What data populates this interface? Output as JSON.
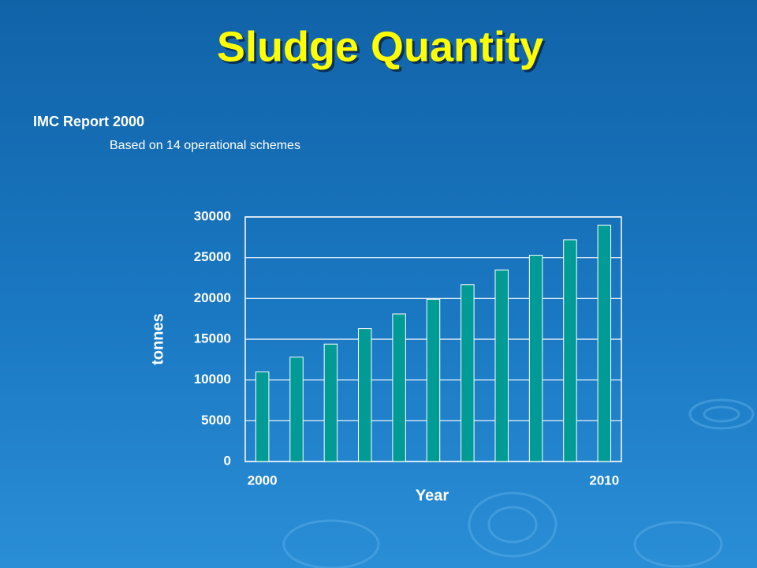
{
  "slide": {
    "title": "Sludge Quantity",
    "heading": "IMC Report 2000",
    "subheading": "Based on 14 operational schemes"
  },
  "chart_data": {
    "type": "bar",
    "y_label": "tonnes",
    "x_label": "Year",
    "categories": [
      "2000",
      null,
      null,
      null,
      null,
      null,
      null,
      null,
      null,
      null,
      "2010"
    ],
    "values": [
      11000,
      12800,
      14400,
      16300,
      18100,
      19900,
      21700,
      23500,
      25300,
      27200,
      29000
    ],
    "color": "#009b95",
    "ylim": [
      0,
      30000
    ],
    "yticks": [
      0,
      5000,
      10000,
      15000,
      20000,
      25000,
      30000
    ],
    "grid": true
  }
}
